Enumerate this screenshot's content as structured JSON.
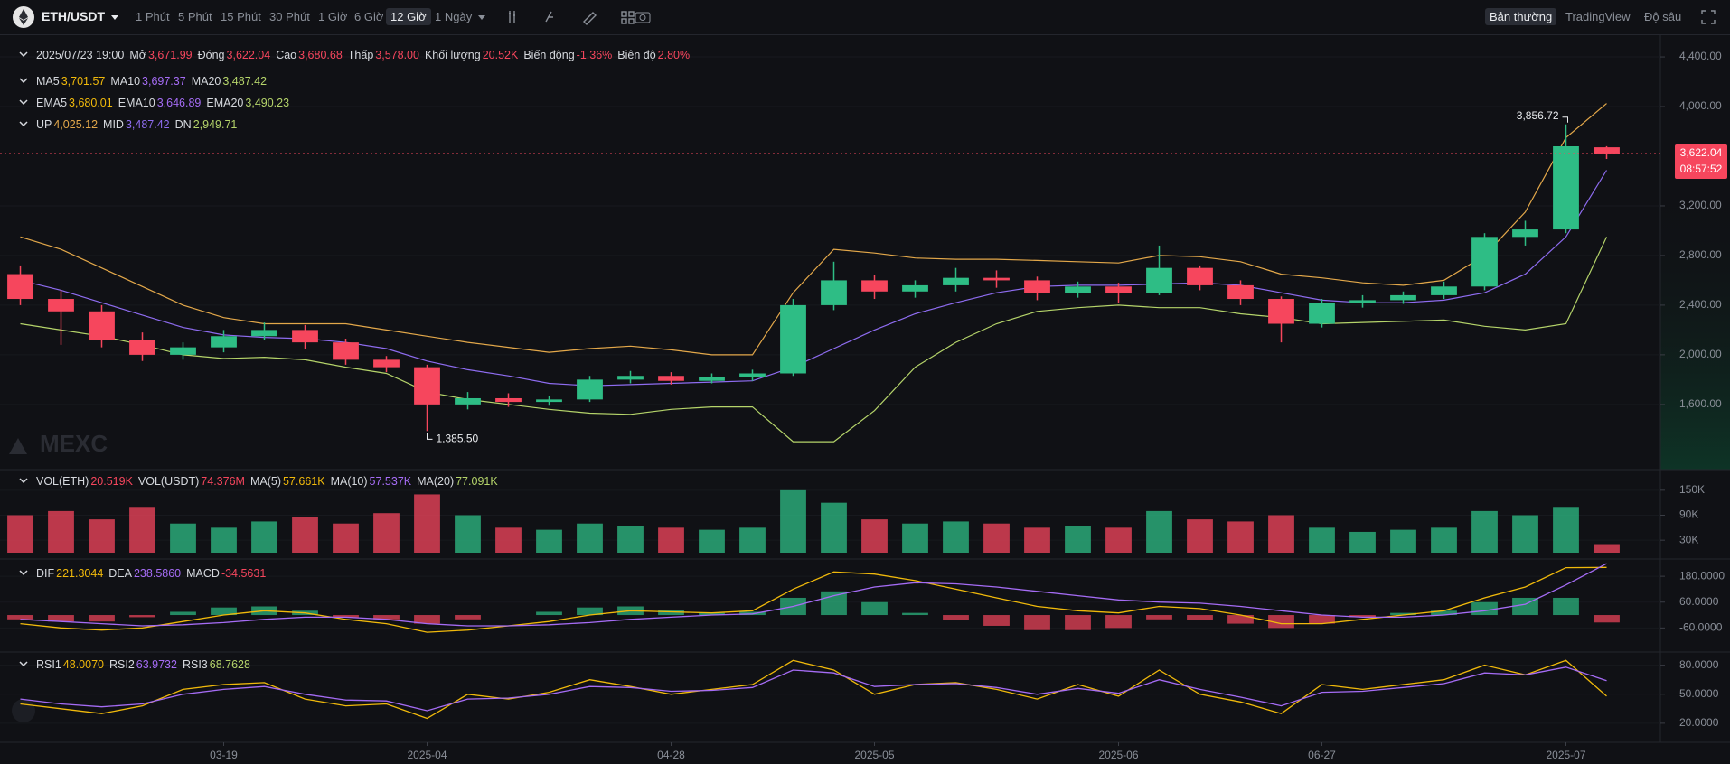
{
  "toolbar": {
    "symbol": "ETH/USDT",
    "intervals": [
      "1 Phút",
      "5 Phút",
      "15 Phút",
      "30 Phút",
      "1 Giờ",
      "6 Giờ",
      "12 Giờ",
      "1 Ngày"
    ],
    "active_interval": 6,
    "views": [
      "Bản thường",
      "TradingView",
      "Độ sâu"
    ],
    "active_view": 0
  },
  "chart_data": [
    {
      "type": "candlestick",
      "time": "2025/07/23 19:00",
      "info": [
        {
          "label": "Mở",
          "value": "3,671.99"
        },
        {
          "label": "Đóng",
          "value": "3,622.04"
        },
        {
          "label": "Cao",
          "value": "3,680.68"
        },
        {
          "label": "Thấp",
          "value": "3,578.00"
        },
        {
          "label": "Khối lượng",
          "value": "20.52K"
        },
        {
          "label": "Biến động",
          "value": "-1.36%"
        },
        {
          "label": "Biên độ",
          "value": "2.80%"
        }
      ],
      "info_color": "#f6465d",
      "legend_rows": [
        [
          {
            "name": "MA5",
            "value": "3,701.57",
            "color": "#f0b90b"
          },
          {
            "name": "MA10",
            "value": "3,697.37",
            "color": "#a56cf5"
          },
          {
            "name": "MA20",
            "value": "3,487.42",
            "color": "#b5d46a"
          }
        ],
        [
          {
            "name": "EMA5",
            "value": "3,680.01",
            "color": "#f0b90b"
          },
          {
            "name": "EMA10",
            "value": "3,646.89",
            "color": "#a56cf5"
          },
          {
            "name": "EMA20",
            "value": "3,490.23",
            "color": "#b5d46a"
          }
        ]
      ],
      "series": [
        {
          "name": "UP",
          "value_label": "4,025.12",
          "color": "#e3a84a",
          "values": [
            2950,
            2850,
            2700,
            2550,
            2400,
            2300,
            2250,
            2250,
            2250,
            2200,
            2150,
            2100,
            2060,
            2020,
            2050,
            2070,
            2040,
            2000,
            2000,
            2500,
            2850,
            2820,
            2780,
            2770,
            2770,
            2760,
            2750,
            2740,
            2800,
            2790,
            2750,
            2650,
            2620,
            2580,
            2560,
            2600,
            2800,
            3150,
            3750,
            4025.12
          ]
        },
        {
          "name": "MID",
          "value_label": "3,487.42",
          "color": "#8e6cf0",
          "values": [
            2600,
            2520,
            2420,
            2320,
            2220,
            2160,
            2140,
            2130,
            2100,
            2050,
            1950,
            1880,
            1830,
            1770,
            1750,
            1760,
            1770,
            1780,
            1790,
            1900,
            2050,
            2200,
            2330,
            2420,
            2500,
            2550,
            2560,
            2560,
            2570,
            2580,
            2560,
            2500,
            2440,
            2420,
            2420,
            2440,
            2500,
            2650,
            2950,
            3487.42
          ]
        },
        {
          "name": "DN",
          "value_label": "2,949.71",
          "color": "#b5d46a",
          "values": [
            2250,
            2200,
            2150,
            2080,
            2000,
            1970,
            1980,
            1960,
            1900,
            1850,
            1700,
            1640,
            1600,
            1560,
            1530,
            1520,
            1560,
            1580,
            1580,
            1300,
            1300,
            1550,
            1900,
            2100,
            2250,
            2350,
            2380,
            2400,
            2380,
            2380,
            2330,
            2300,
            2250,
            2260,
            2270,
            2280,
            2230,
            2200,
            2250,
            2949.71
          ]
        }
      ],
      "categories": [
        null,
        null,
        null,
        null,
        null,
        "03-19",
        null,
        null,
        null,
        null,
        "2025-04",
        null,
        null,
        null,
        null,
        null,
        "04-28",
        null,
        null,
        null,
        null,
        "2025-05",
        null,
        null,
        null,
        null,
        null,
        "2025-06",
        null,
        null,
        null,
        null,
        "06-27",
        null,
        null,
        null,
        null,
        null,
        "2025-07",
        null
      ],
      "open": [
        2650,
        2450,
        2350,
        2120,
        2000,
        2060,
        2150,
        2200,
        2100,
        1960,
        1900,
        1600,
        1650,
        1620,
        1640,
        1800,
        1830,
        1790,
        1820,
        1850,
        2400,
        2600,
        2510,
        2560,
        2620,
        2600,
        2500,
        2550,
        2500,
        2700,
        2560,
        2450,
        2250,
        2420,
        2440,
        2480,
        2550,
        2950,
        3010,
        3671.99
      ],
      "high": [
        2720,
        2520,
        2400,
        2180,
        2100,
        2200,
        2260,
        2240,
        2130,
        1990,
        1920,
        1700,
        1690,
        1670,
        1830,
        1870,
        1860,
        1850,
        1880,
        2450,
        2750,
        2640,
        2600,
        2700,
        2680,
        2630,
        2590,
        2580,
        2880,
        2720,
        2600,
        2470,
        2450,
        2480,
        2510,
        2590,
        2980,
        3080,
        3856.72,
        3680.68
      ],
      "low": [
        2400,
        2080,
        2060,
        1950,
        1960,
        2020,
        2120,
        2050,
        1920,
        1860,
        1385.5,
        1560,
        1580,
        1590,
        1620,
        1770,
        1760,
        1770,
        1790,
        1830,
        2360,
        2450,
        2460,
        2510,
        2540,
        2440,
        2460,
        2420,
        2480,
        2520,
        2400,
        2100,
        2220,
        2380,
        2410,
        2450,
        2520,
        2880,
        2980,
        3578
      ],
      "close": [
        2450,
        2350,
        2120,
        2000,
        2060,
        2150,
        2200,
        2100,
        1960,
        1900,
        1600,
        1650,
        1620,
        1640,
        1800,
        1830,
        1790,
        1820,
        1850,
        2400,
        2600,
        2510,
        2560,
        2620,
        2600,
        2500,
        2550,
        2500,
        2700,
        2560,
        2450,
        2250,
        2420,
        2440,
        2480,
        2550,
        2950,
        3010,
        3680,
        3622.04
      ],
      "high_labels": [
        null,
        null,
        null,
        null,
        null,
        null,
        null,
        null,
        null,
        null,
        null,
        null,
        null,
        null,
        null,
        null,
        null,
        null,
        null,
        null,
        null,
        null,
        null,
        null,
        null,
        null,
        null,
        null,
        null,
        null,
        null,
        null,
        null,
        null,
        null,
        null,
        null,
        null,
        "3,856.72",
        null
      ],
      "low_labels": [
        null,
        null,
        null,
        null,
        null,
        null,
        null,
        null,
        null,
        null,
        "1,385.50",
        null,
        null,
        null,
        null,
        null,
        null,
        null,
        null,
        null,
        null,
        null,
        null,
        null,
        null,
        null,
        null,
        null,
        null,
        null,
        null,
        null,
        null,
        null,
        null,
        null,
        null,
        null,
        null,
        null
      ],
      "up_color": "#2ebd85",
      "down_color": "#f6465d",
      "ylim": [
        1075,
        4575
      ],
      "yticks": [
        {
          "value": 1600,
          "label": "1,600.00"
        },
        {
          "value": 2000,
          "label": "2,000.00"
        },
        {
          "value": 2400,
          "label": "2,400.00"
        },
        {
          "value": 2800,
          "label": "2,800.00"
        },
        {
          "value": 3200,
          "label": "3,200.00"
        },
        {
          "value": 4000,
          "label": "4,000.00"
        },
        {
          "value": 4400,
          "label": "4,400.00"
        }
      ],
      "countdown": "08:57:52",
      "watermark": "MEXC"
    },
    {
      "type": "bar",
      "legend": [
        {
          "name": "VOL(ETH)",
          "value": "20.519K",
          "color": "#f6465d"
        },
        {
          "name": "VOL(USDT)",
          "value": "74.376M",
          "color": "#f6465d"
        },
        {
          "name": "MA(5)",
          "value": "57.661K",
          "color": "#f0b90b"
        },
        {
          "name": "MA(10)",
          "value": "57.537K",
          "color": "#a56cf5"
        },
        {
          "name": "MA(20)",
          "value": "77.091K",
          "color": "#b5d46a"
        }
      ],
      "values": [
        90000,
        100000,
        80000,
        110000,
        70000,
        60000,
        75000,
        85000,
        70000,
        95000,
        140000,
        90000,
        60000,
        55000,
        70000,
        65000,
        60000,
        55000,
        60000,
        150000,
        120000,
        80000,
        70000,
        75000,
        70000,
        60000,
        65000,
        60000,
        100000,
        80000,
        75000,
        90000,
        60000,
        50000,
        55000,
        60000,
        100000,
        90000,
        110000,
        20519
      ],
      "ylim": [
        0,
        180000
      ],
      "yticks": [
        {
          "value": 30000,
          "label": "30K"
        },
        {
          "value": 90000,
          "label": "90K"
        },
        {
          "value": 150000,
          "label": "150K"
        }
      ]
    },
    {
      "type": "macd",
      "series": [
        {
          "name": "DIF",
          "value_label": "221.3044",
          "color": "#f0b90b",
          "values": [
            -40,
            -60,
            -70,
            -60,
            -30,
            0,
            20,
            10,
            -20,
            -40,
            -80,
            -70,
            -50,
            -30,
            0,
            20,
            15,
            10,
            20,
            120,
            200,
            190,
            160,
            120,
            80,
            40,
            20,
            10,
            40,
            30,
            0,
            -40,
            -40,
            -20,
            0,
            20,
            80,
            130,
            220,
            221.3044
          ]
        },
        {
          "name": "DEA",
          "value_label": "238.5860",
          "color": "#a56cf5",
          "values": [
            -20,
            -30,
            -40,
            -50,
            -45,
            -35,
            -20,
            -10,
            -10,
            -20,
            -40,
            -50,
            -50,
            -45,
            -35,
            -20,
            -10,
            0,
            5,
            40,
            90,
            130,
            150,
            145,
            130,
            110,
            90,
            70,
            60,
            55,
            40,
            20,
            0,
            -10,
            -10,
            0,
            20,
            50,
            140,
            238.586
          ]
        }
      ],
      "histogram": {
        "name": "MACD",
        "value_label": "-34.5631",
        "color": "#f6465d",
        "values": [
          -20,
          -30,
          -30,
          -10,
          15,
          35,
          40,
          20,
          -10,
          -20,
          -40,
          -20,
          0,
          15,
          35,
          40,
          25,
          10,
          15,
          80,
          110,
          60,
          10,
          -25,
          -50,
          -70,
          -70,
          -60,
          -20,
          -25,
          -40,
          -60,
          -40,
          -10,
          10,
          20,
          60,
          80,
          80,
          -34.5631
        ]
      },
      "ylim": [
        -155,
        235
      ],
      "yticks": [
        {
          "value": -60,
          "label": "-60.0000"
        },
        {
          "value": 60,
          "label": "60.0000"
        },
        {
          "value": 180,
          "label": "180.0000"
        }
      ]
    },
    {
      "type": "line",
      "series": [
        {
          "name": "RSI1",
          "value_label": "48.0070",
          "color": "#f0b90b",
          "values": [
            40,
            35,
            30,
            38,
            55,
            60,
            62,
            45,
            38,
            40,
            25,
            50,
            45,
            52,
            65,
            58,
            50,
            55,
            60,
            85,
            75,
            50,
            60,
            62,
            55,
            45,
            60,
            48,
            75,
            50,
            42,
            30,
            60,
            55,
            60,
            65,
            80,
            70,
            85,
            48.007
          ]
        },
        {
          "name": "RSI2",
          "value_label": "63.9732",
          "color": "#a56cf5",
          "values": [
            45,
            40,
            37,
            40,
            50,
            55,
            58,
            50,
            44,
            43,
            33,
            45,
            46,
            50,
            58,
            57,
            53,
            54,
            57,
            75,
            72,
            58,
            60,
            61,
            57,
            50,
            56,
            51,
            65,
            55,
            47,
            38,
            52,
            53,
            57,
            61,
            72,
            70,
            78,
            63.9732
          ]
        }
      ],
      "extra_legend": [
        {
          "name": "RSI3",
          "value": "68.7628",
          "color": "#b5d46a"
        }
      ],
      "ylim": [
        4,
        89
      ],
      "yticks": [
        {
          "value": 20,
          "label": "20.0000"
        },
        {
          "value": 50,
          "label": "50.0000"
        },
        {
          "value": 80,
          "label": "80.0000"
        }
      ]
    }
  ]
}
